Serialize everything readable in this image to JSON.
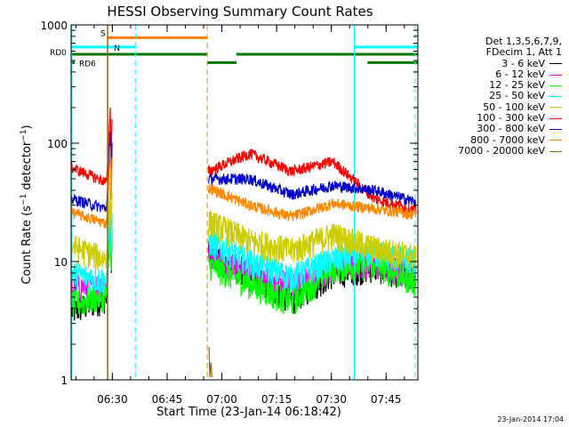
{
  "chart_data": {
    "type": "line",
    "title": "HESSI Observing Summary Count Rates",
    "xlabel": "Start Time (23-Jan-14 06:18:42)",
    "ylabel": "Count Rate (s^-1 detector^-1)",
    "ylabel_main": "Count Rate (s",
    "ylabel_sup1": "−1",
    "ylabel_mid": " detector",
    "ylabel_sup2": "−1",
    "ylabel_end": ")",
    "y_scale": "log",
    "ylim": [
      1,
      1000
    ],
    "xlim_minutes": [
      0,
      95
    ],
    "x_ticks": [
      {
        "label": "06:30",
        "min": 11.3
      },
      {
        "label": "06:45",
        "min": 26.3
      },
      {
        "label": "07:00",
        "min": 41.3
      },
      {
        "label": "07:15",
        "min": 56.3
      },
      {
        "label": "07:30",
        "min": 71.3
      },
      {
        "label": "07:45",
        "min": 86.3
      }
    ],
    "y_ticks": [
      {
        "label": "1",
        "value": 1
      },
      {
        "label": "10",
        "value": 10
      },
      {
        "label": "100",
        "value": 100
      },
      {
        "label": "1000",
        "value": 1000
      }
    ],
    "grid": false,
    "legend_header": [
      "Det 1,3,5,6,7,9,",
      "FDecim 1, Att 1"
    ],
    "legend_position": "right",
    "series": [
      {
        "name": "3 - 6 keV",
        "color": "#000000",
        "before": [
          3.8,
          5.0
        ],
        "after": [
          12,
          7.5,
          4.8,
          8,
          9,
          7.5
        ]
      },
      {
        "name": "6 - 12 keV",
        "color": "#ff00ff",
        "before": [
          6.0,
          6.5
        ],
        "after": [
          12,
          8.5,
          6.2,
          9,
          10,
          7.5
        ]
      },
      {
        "name": "12 - 25 keV",
        "color": "#00ff00",
        "before": [
          4.4,
          5.2
        ],
        "after": [
          9.5,
          6.5,
          4.6,
          9,
          9.5,
          6.8
        ]
      },
      {
        "name": "25 - 50 keV",
        "color": "#00ffff",
        "before": [
          8.0,
          7.0
        ],
        "after": [
          15,
          10,
          7.5,
          10.5,
          12,
          10
        ]
      },
      {
        "name": "50 - 100 keV",
        "color": "#cccc00",
        "before": [
          13.5,
          10.5
        ],
        "after": [
          22,
          15,
          12.5,
          17,
          13,
          11
        ]
      },
      {
        "name": "100 - 300 keV",
        "color": "#ff0000",
        "before": [
          62,
          47
        ],
        "after": [
          58,
          82,
          58,
          70,
          34,
          27
        ]
      },
      {
        "name": "300 - 800 keV",
        "color": "#0000cc",
        "before": [
          34,
          28
        ],
        "after": [
          50,
          50,
          37,
          44,
          40,
          32
        ]
      },
      {
        "name": "800 - 7000 keV",
        "color": "#ff8800",
        "before": [
          26,
          21
        ],
        "after": [
          42,
          30,
          24,
          31,
          28,
          25
        ]
      },
      {
        "name": "7000 - 20000 keV",
        "color": "#996600",
        "before": [],
        "after": []
      }
    ],
    "flag_bars": [
      {
        "label": "S",
        "color": "#ff8000",
        "value": 780,
        "segments": [
          [
            10.0,
            37.3
          ]
        ]
      },
      {
        "label": "N",
        "color": "#00ffff",
        "value": 650,
        "segments": [
          [
            0,
            17.6
          ],
          [
            77.6,
            95
          ]
        ]
      },
      {
        "label": "RD0",
        "color": "#007700",
        "value": 565,
        "segments": [
          [
            0,
            37.3
          ],
          [
            45.3,
            81.2
          ],
          [
            81.2,
            95
          ]
        ]
      },
      {
        "label": "RD6",
        "color": "#007700",
        "value": 480,
        "segments": [
          [
            37.3,
            45.3
          ],
          [
            81.2,
            95
          ]
        ]
      }
    ],
    "vertical_lines": [
      {
        "min": 0.2,
        "color": "#00ffff",
        "style": "solid"
      },
      {
        "min": 17.6,
        "color": "#00ffff",
        "style": "dashed"
      },
      {
        "min": 37.3,
        "color": "#ff8000",
        "style": "dashed"
      },
      {
        "min": 77.6,
        "color": "#00ffff",
        "style": "solid"
      },
      {
        "min": 94.3,
        "color": "#00ffff",
        "style": "dashed"
      },
      {
        "min": 10.0,
        "color": "#996600",
        "style": "solid"
      }
    ]
  },
  "timestamp": "23-Jan-2014 17:04"
}
